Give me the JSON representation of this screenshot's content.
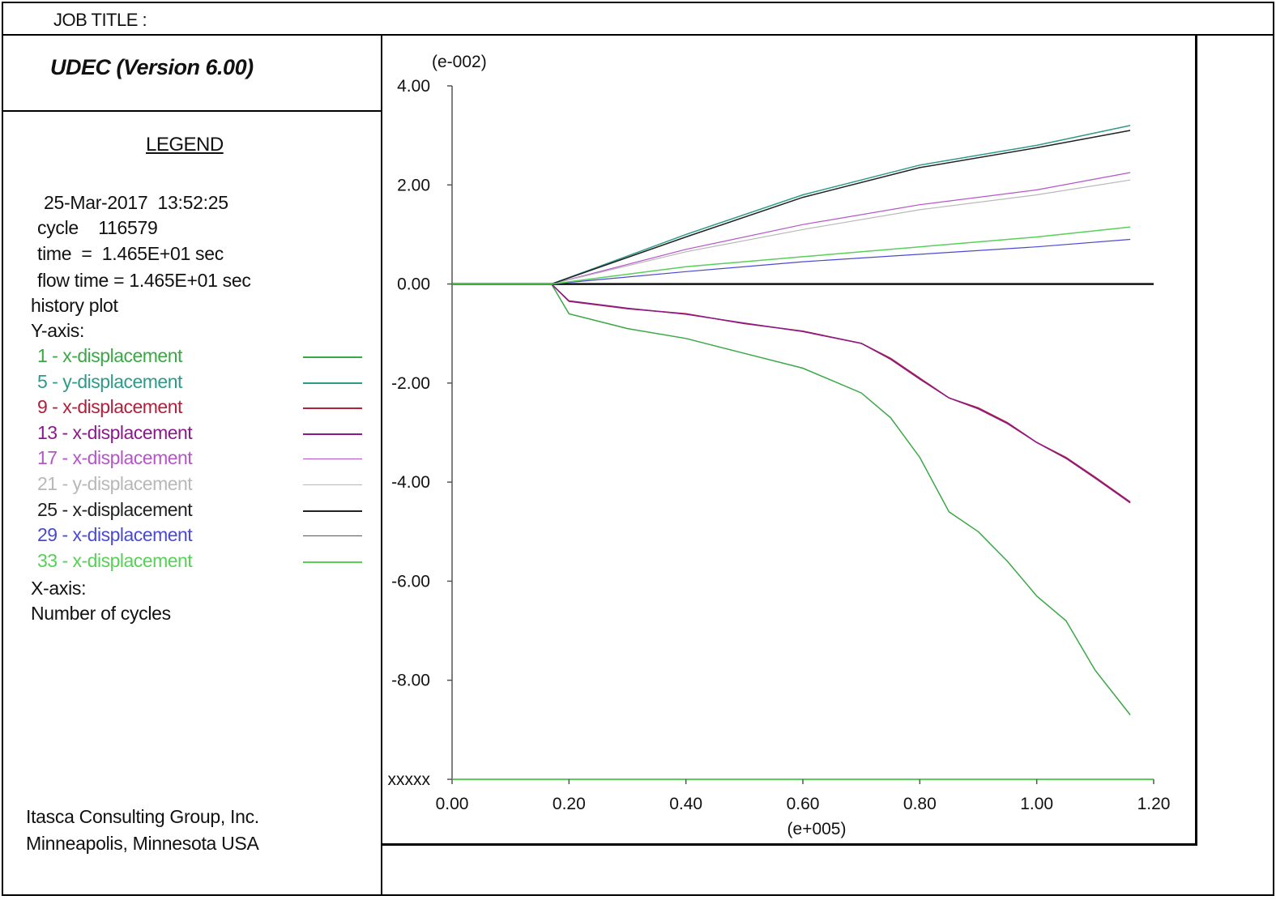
{
  "header": {
    "job_title": "JOB TITLE :"
  },
  "app": {
    "version": "UDEC (Version 6.00)"
  },
  "legend": {
    "heading": "LEGEND",
    "date": "25-Mar-2017  13:52:25",
    "cycle": "cycle    116579",
    "time": "time  =  1.465E+01 sec",
    "flow_time": "flow time = 1.465E+01 sec",
    "plot_type": "history plot",
    "y_axis_heading": "Y-axis:",
    "x_axis_heading": "X-axis:",
    "x_axis_desc": "Number of cycles"
  },
  "footer": {
    "company": "Itasca Consulting Group, Inc.",
    "location": "Minneapolis, Minnesota  USA"
  },
  "chart_data": {
    "type": "line",
    "grid": false,
    "x_multiplier": "(e+005)",
    "y_multiplier": "(e-002)",
    "xlim": [
      0,
      1.2
    ],
    "ylim": [
      -10,
      4
    ],
    "x_ticks": [
      "0.00",
      "0.20",
      "0.40",
      "0.60",
      "0.80",
      "1.00",
      "1.20"
    ],
    "x_tick_values": [
      0,
      0.2,
      0.4,
      0.6,
      0.8,
      1.0,
      1.2
    ],
    "y_ticks": [
      "4.00",
      "2.00",
      "0.00",
      "-2.00",
      "-4.00",
      "-6.00",
      "-8.00",
      "xxxxx"
    ],
    "y_tick_values": [
      4,
      2,
      0,
      -2,
      -4,
      -6,
      -8,
      -10
    ],
    "series": [
      {
        "name": "1 - x-displacement",
        "color": "#39a845",
        "width": 1.5,
        "x": [
          0,
          0.17,
          0.2,
          0.3,
          0.4,
          0.5,
          0.6,
          0.7,
          0.75,
          0.8,
          0.85,
          0.9,
          0.95,
          1.0,
          1.05,
          1.1,
          1.16
        ],
        "y": [
          0,
          0,
          -0.6,
          -0.9,
          -1.1,
          -1.4,
          -1.7,
          -2.2,
          -2.7,
          -3.5,
          -4.6,
          -5.0,
          -5.6,
          -6.3,
          -6.8,
          -7.8,
          -8.7
        ]
      },
      {
        "name": "5 - y-displacement",
        "color": "#2e9a8a",
        "width": 1.5,
        "x": [
          0,
          0.17,
          0.4,
          0.6,
          0.8,
          1.0,
          1.16
        ],
        "y": [
          0,
          0,
          1.0,
          1.8,
          2.4,
          2.8,
          3.2
        ]
      },
      {
        "name": "9 - x-displacement",
        "color": "#b0203a",
        "width": 1.5,
        "x": [
          0,
          0.17,
          0.2,
          0.3,
          0.4,
          0.5,
          0.6,
          0.7,
          0.75,
          0.8,
          0.85,
          0.9,
          0.95,
          1.0,
          1.05,
          1.1,
          1.16
        ],
        "y": [
          0,
          0,
          -0.35,
          -0.5,
          -0.6,
          -0.8,
          -0.95,
          -1.2,
          -1.5,
          -1.9,
          -2.3,
          -2.5,
          -2.8,
          -3.2,
          -3.5,
          -3.9,
          -4.4
        ]
      },
      {
        "name": "13 - x-displacement",
        "color": "#8a1a8a",
        "width": 1.5,
        "x": [
          0,
          0.17,
          0.2,
          0.3,
          0.4,
          0.5,
          0.6,
          0.7,
          0.75,
          0.8,
          0.85,
          0.9,
          0.95,
          1.0,
          1.05,
          1.1,
          1.16
        ],
        "y": [
          0,
          0,
          -0.34,
          -0.49,
          -0.61,
          -0.79,
          -0.96,
          -1.2,
          -1.52,
          -1.92,
          -2.3,
          -2.52,
          -2.82,
          -3.2,
          -3.52,
          -3.92,
          -4.42
        ]
      },
      {
        "name": "17 - x-displacement",
        "color": "#b455c8",
        "width": 1.2,
        "x": [
          0,
          0.17,
          0.4,
          0.6,
          0.8,
          1.0,
          1.16
        ],
        "y": [
          0,
          0,
          0.7,
          1.2,
          1.6,
          1.9,
          2.25
        ]
      },
      {
        "name": "21 - y-displacement",
        "color": "#b8b8b8",
        "width": 1.2,
        "x": [
          0,
          0.17,
          0.4,
          0.6,
          0.8,
          1.0,
          1.16
        ],
        "y": [
          0,
          0,
          0.65,
          1.1,
          1.5,
          1.8,
          2.1
        ]
      },
      {
        "name": "25 - x-displacement",
        "color": "#222222",
        "width": 1.5,
        "x": [
          0,
          0.17,
          0.4,
          0.6,
          0.8,
          1.0,
          1.16
        ],
        "y": [
          0,
          0,
          0.95,
          1.75,
          2.35,
          2.75,
          3.1
        ]
      },
      {
        "name": "29 - x-displacement",
        "color": "#4a4ad0",
        "width": 1.2,
        "x": [
          0,
          0.17,
          0.4,
          0.6,
          0.8,
          1.0,
          1.16
        ],
        "y": [
          0,
          0,
          0.25,
          0.45,
          0.6,
          0.75,
          0.9
        ]
      },
      {
        "name": "33 - x-displacement",
        "color": "#58d058",
        "width": 1.5,
        "x": [
          0,
          0.17,
          0.4,
          0.6,
          0.8,
          1.0,
          1.16
        ],
        "y": [
          0,
          0,
          0.35,
          0.55,
          0.75,
          0.95,
          1.15
        ]
      }
    ]
  }
}
